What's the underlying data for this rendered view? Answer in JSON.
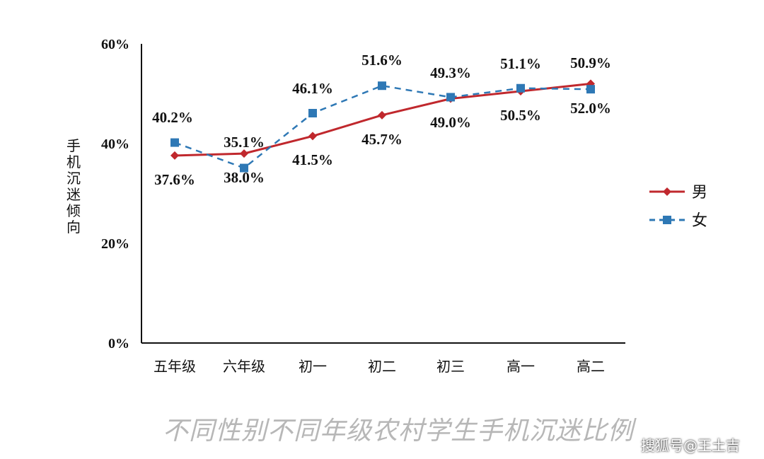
{
  "chart_data": {
    "type": "line",
    "ylabel": "手机沉迷倾向",
    "xlabel": "",
    "ylim": [
      0,
      60
    ],
    "yticks": [
      "0%",
      "20%",
      "40%",
      "60%"
    ],
    "yticks_values": [
      0,
      20,
      40,
      60
    ],
    "categories": [
      "五年级",
      "六年级",
      "初一",
      "初二",
      "初三",
      "高一",
      "高二"
    ],
    "series": [
      {
        "name": "男",
        "color": "#c0282d",
        "marker": "diamond",
        "line": "solid",
        "values": [
          37.6,
          38.0,
          41.5,
          45.7,
          49.0,
          50.5,
          52.0
        ],
        "labels": [
          "37.6%",
          "38.0%",
          "41.5%",
          "45.7%",
          "49.0%",
          "50.5%",
          "52.0%"
        ]
      },
      {
        "name": "女",
        "color": "#2e78b5",
        "marker": "square",
        "line": "dashed",
        "values": [
          40.2,
          35.1,
          46.1,
          51.6,
          49.3,
          51.1,
          50.9
        ],
        "labels": [
          "40.2%",
          "35.1%",
          "46.1%",
          "51.6%",
          "49.3%",
          "51.1%",
          "50.9%"
        ]
      }
    ],
    "legend_position": "right"
  },
  "caption": "不同性别不同年级农村学生手机沉迷比例",
  "watermark": "搜狐号@王土吉"
}
